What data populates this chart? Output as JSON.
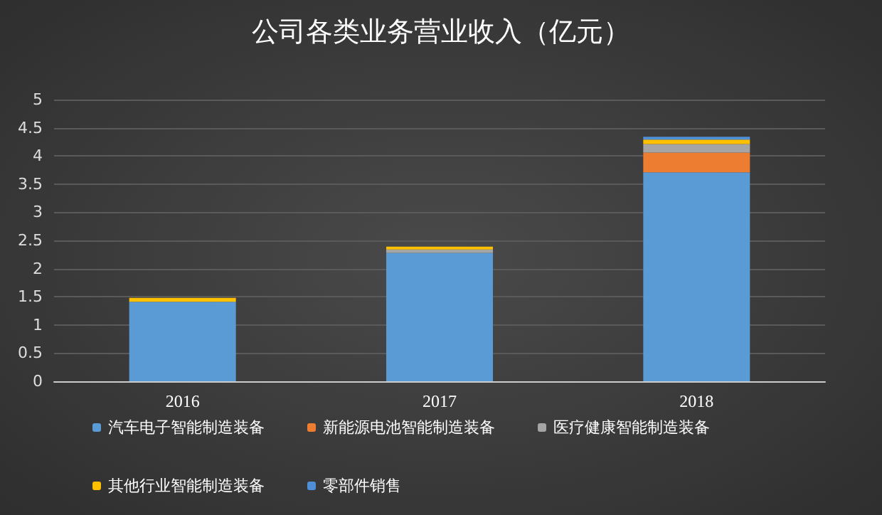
{
  "chart_data": {
    "type": "bar",
    "title": "公司各类业务营业收入（亿元）",
    "categories": [
      "2016",
      "2017",
      "2018"
    ],
    "stacked": true,
    "series": [
      {
        "name": "汽车电子智能制造装备",
        "color": "#5b9bd5",
        "values": [
          1.41,
          2.28,
          3.71
        ]
      },
      {
        "name": "新能源电池智能制造装备",
        "color": "#ed7d31",
        "values": [
          0,
          null,
          0.35
        ]
      },
      {
        "name": "医疗健康智能制造装备",
        "color": "#a5a5a5",
        "values": [
          0,
          0.06,
          0.15
        ]
      },
      {
        "name": "其他行业智能制造装备",
        "color": "#ffc000",
        "values": [
          0.07,
          0.05,
          0.08
        ]
      },
      {
        "name": "零部件销售",
        "color": "#4f8fd6",
        "values": [
          null,
          null,
          0.05
        ]
      }
    ],
    "ylim": [
      0,
      5
    ],
    "yticks": [
      0,
      0.5,
      1,
      1.5,
      2,
      2.5,
      3,
      3.5,
      4,
      4.5,
      5
    ],
    "grid": "y",
    "legend": "bottom"
  }
}
